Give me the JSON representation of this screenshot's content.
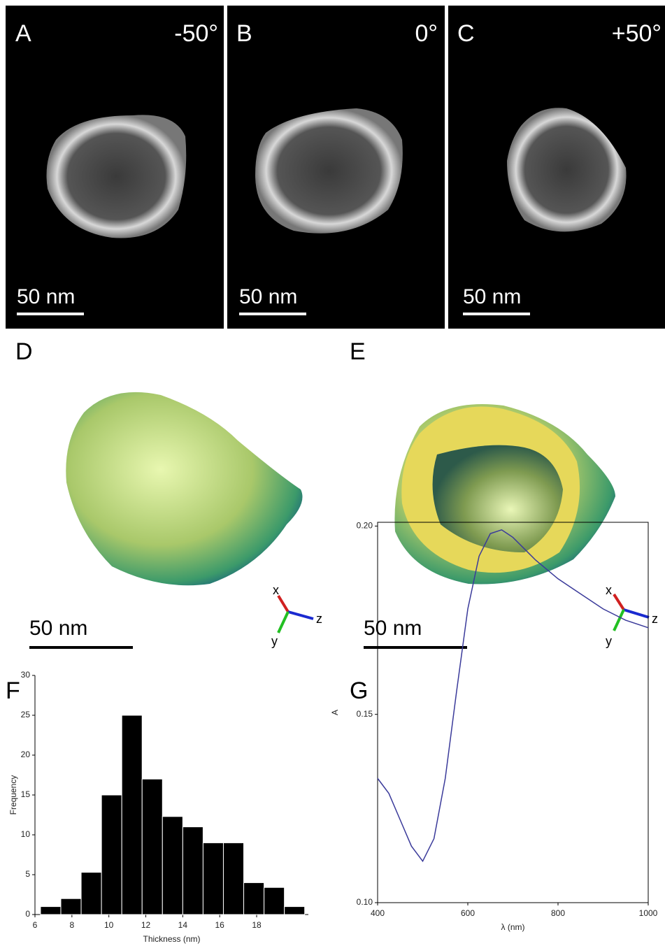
{
  "panels": [
    {
      "letter": "A",
      "angle": "-50°",
      "scale": "50 nm"
    },
    {
      "letter": "B",
      "angle": "0°",
      "scale": "50 nm"
    },
    {
      "letter": "C",
      "angle": "+50°",
      "scale": "50 nm"
    },
    {
      "letter": "D",
      "scale": "50 nm",
      "axes": [
        "x",
        "y",
        "z"
      ]
    },
    {
      "letter": "E",
      "scale": "50 nm",
      "axes": [
        "x",
        "y",
        "z"
      ]
    }
  ],
  "chart_data": [
    {
      "type": "histogram",
      "panel": "F",
      "x_label": "Thickness (nm)",
      "y_label": "Frequency",
      "bins": [
        6.3,
        7.4,
        8.5,
        9.6,
        10.7,
        11.8,
        12.9,
        14.0,
        15.1,
        16.2,
        17.3,
        18.4,
        19.5,
        20.6
      ],
      "values": [
        1,
        2,
        5.3,
        15,
        25,
        17,
        12.3,
        11,
        9,
        9,
        4,
        3.4,
        1
      ],
      "color": "#000000",
      "xlim": [
        6,
        20.8
      ],
      "xticks": [
        6,
        8,
        10,
        12,
        14,
        16,
        18
      ],
      "ylim": [
        0,
        30
      ],
      "yticks": [
        0,
        5,
        10,
        15,
        20,
        25,
        30
      ]
    },
    {
      "type": "line",
      "panel": "G",
      "x_label": "λ (nm)",
      "y_label": "A",
      "x": [
        400,
        425,
        450,
        475,
        500,
        525,
        550,
        575,
        600,
        625,
        650,
        675,
        700,
        750,
        800,
        850,
        900,
        950,
        1000
      ],
      "values": [
        0.133,
        0.129,
        0.122,
        0.115,
        0.111,
        0.117,
        0.133,
        0.156,
        0.178,
        0.192,
        0.198,
        0.199,
        0.197,
        0.191,
        0.186,
        0.182,
        0.178,
        0.175,
        0.173
      ],
      "color": "#3a3a9a",
      "xlim": [
        400,
        1000
      ],
      "xticks": [
        400,
        600,
        800,
        1000
      ],
      "ylim": [
        0.1,
        0.201
      ],
      "yticks": [
        {
          "value": 0.1,
          "label": "0.10"
        },
        0.15,
        {
          "value": 0.2,
          "label": "0.20"
        }
      ]
    }
  ]
}
